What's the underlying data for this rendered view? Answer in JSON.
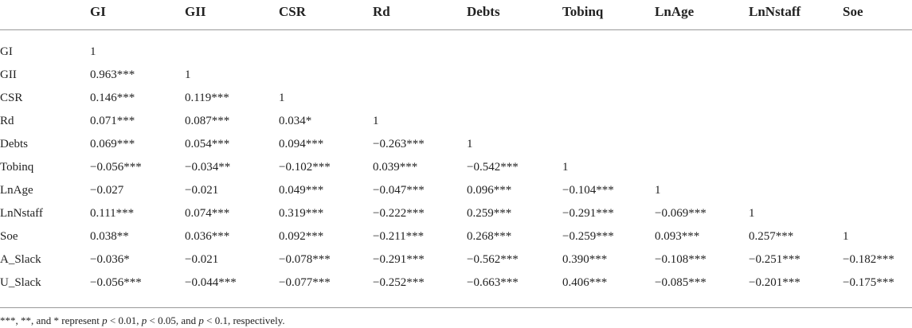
{
  "table": {
    "header": [
      "GI",
      "GII",
      "CSR",
      "Rd",
      "Debts",
      "Tobinq",
      "LnAge",
      "LnNstaff",
      "Soe"
    ],
    "rows": [
      [
        "GI",
        "1"
      ],
      [
        "GII",
        "0.963***",
        "1"
      ],
      [
        "CSR",
        "0.146***",
        "0.119***",
        "1"
      ],
      [
        "Rd",
        "0.071***",
        "0.087***",
        "0.034*",
        "1"
      ],
      [
        "Debts",
        "0.069***",
        "0.054***",
        "0.094***",
        "−0.263***",
        "1"
      ],
      [
        "Tobinq",
        "−0.056***",
        "−0.034**",
        "−0.102***",
        "0.039***",
        "−0.542***",
        "1"
      ],
      [
        "LnAge",
        "−0.027",
        "−0.021",
        "0.049***",
        "−0.047***",
        "0.096***",
        "−0.104***",
        "1"
      ],
      [
        "LnNstaff",
        "0.111***",
        "0.074***",
        "0.319***",
        "−0.222***",
        "0.259***",
        "−0.291***",
        "−0.069***",
        "1"
      ],
      [
        "Soe",
        "0.038**",
        "0.036***",
        "0.092***",
        "−0.211***",
        "0.268***",
        "−0.259***",
        "0.093***",
        "0.257***",
        "1"
      ],
      [
        "A_Slack",
        "−0.036*",
        "−0.021",
        "−0.078***",
        "−0.291***",
        "−0.562***",
        "0.390***",
        "−0.108***",
        "−0.251***",
        "−0.182***"
      ],
      [
        "U_Slack",
        "−0.056***",
        "−0.044***",
        "−0.077***",
        "−0.252***",
        "−0.663***",
        "0.406***",
        "−0.085***",
        "−0.201***",
        "−0.175***"
      ]
    ],
    "footnote": [
      "***, **, and * represent ",
      "p",
      " < 0.01, ",
      "p",
      " < 0.05, and ",
      "p",
      " < 0.1, respectively."
    ]
  }
}
